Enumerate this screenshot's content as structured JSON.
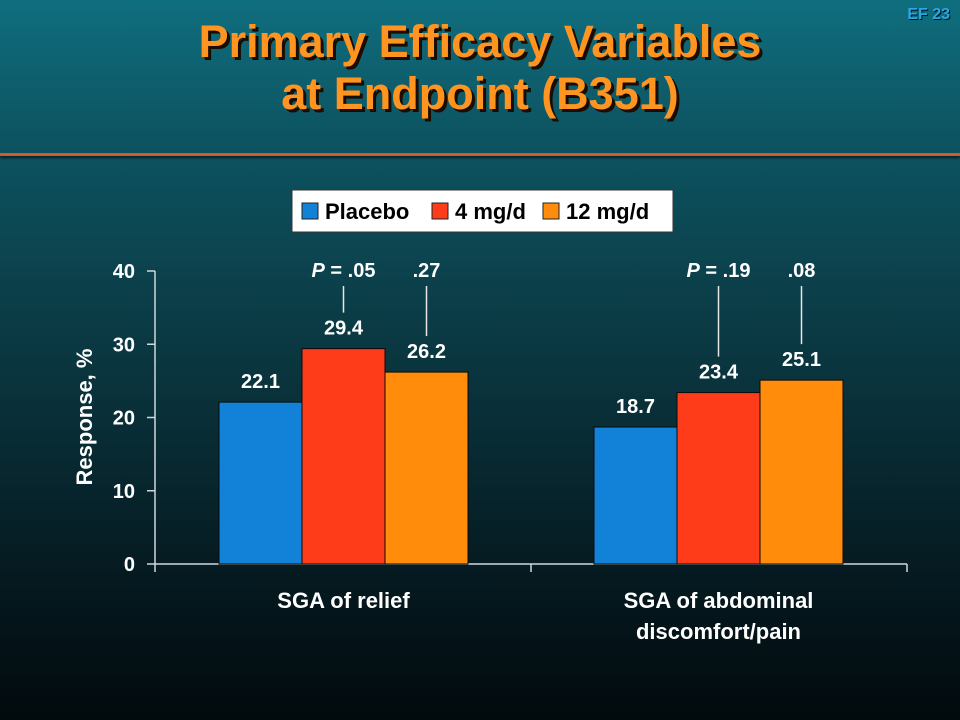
{
  "slide_id": "EF 23",
  "title_line1": "Primary Efficacy Variables",
  "title_line2": "at Endpoint (B351)",
  "colors": {
    "title": "#ff9420",
    "rule": "#d9582b",
    "slide_id": "#2aa7e6"
  },
  "chart_data": {
    "type": "bar",
    "title": "",
    "xlabel": "",
    "ylabel": "Response, %",
    "ylim": [
      0,
      40
    ],
    "yticks": [
      0,
      10,
      20,
      30,
      40
    ],
    "grid": false,
    "legend_position": "top",
    "categories": [
      [
        "SGA of relief"
      ],
      [
        "SGA of abdominal",
        "discomfort/pain"
      ]
    ],
    "series": [
      {
        "name": "Placebo",
        "color": "#1282d8",
        "values": [
          22.1,
          18.7
        ],
        "labels": [
          "22.1",
          "18.7"
        ]
      },
      {
        "name": "4 mg/d",
        "color": "#ff3c1a",
        "values": [
          29.4,
          23.4
        ],
        "labels": [
          "29.4",
          "23.4"
        ]
      },
      {
        "name": "12 mg/d",
        "color": "#ff8c0a",
        "values": [
          26.2,
          25.1
        ],
        "labels": [
          "26.2",
          "25.1"
        ]
      }
    ],
    "p_values": [
      {
        "category": 0,
        "series": 1,
        "prefix": "P",
        "text": " = .05"
      },
      {
        "category": 0,
        "series": 2,
        "prefix": "",
        "text": ".27"
      },
      {
        "category": 1,
        "series": 1,
        "prefix": "P",
        "text": " = .19"
      },
      {
        "category": 1,
        "series": 2,
        "prefix": "",
        "text": ".08"
      }
    ]
  }
}
